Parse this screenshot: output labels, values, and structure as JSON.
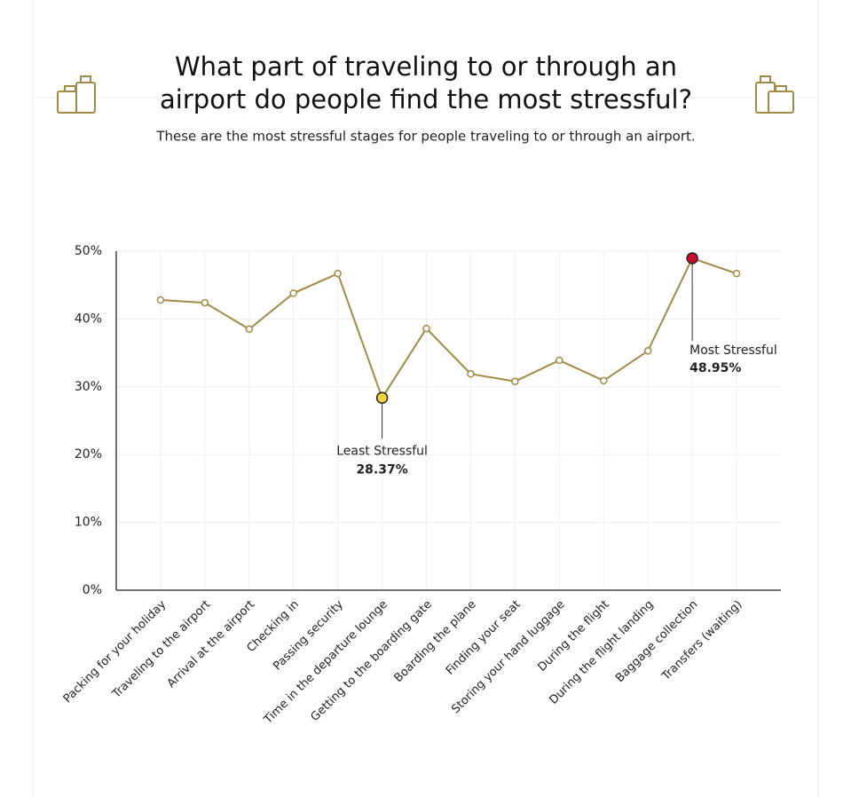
{
  "chart_data": {
    "type": "line",
    "title": [
      "What part of traveling to or through an",
      "airport do people find the most stressful?"
    ],
    "subtitle": "These are the most stressful stages for people traveling to or through an airport.",
    "categories": [
      "Packing for your holiday",
      "Traveling to the airport",
      "Arrival at the airport",
      "Checking in",
      "Passing security",
      "Time in the departure lounge",
      "Getting to the boarding gate",
      "Boarding the plane",
      "Finding your seat",
      "Storing your hand luggage",
      "During the flight",
      "During the flight landing",
      "Baggage collection",
      "Transfers (waiting)"
    ],
    "values": [
      42.8,
      42.4,
      38.5,
      43.8,
      46.7,
      28.37,
      38.6,
      31.9,
      30.8,
      33.9,
      30.9,
      35.3,
      48.95,
      46.7
    ],
    "value_labels": [
      null,
      null,
      null,
      null,
      null,
      "28.37%",
      null,
      null,
      null,
      null,
      null,
      null,
      "48.95%",
      null
    ],
    "color": "#a08a45",
    "ylim": [
      0,
      50
    ],
    "yticks": [
      {
        "value": 0,
        "label": "0%"
      },
      {
        "value": 10,
        "label": "10%"
      },
      {
        "value": 20,
        "label": "20%"
      },
      {
        "value": 30,
        "label": "30%"
      },
      {
        "value": 40,
        "label": "40%"
      },
      {
        "value": 50,
        "label": "50%"
      }
    ],
    "grid": true,
    "annotations": {
      "min": {
        "text": "Least Stressful",
        "color": "#f5d33a"
      },
      "max": {
        "text": "Most Stressful",
        "color": "#c8102e"
      }
    }
  }
}
